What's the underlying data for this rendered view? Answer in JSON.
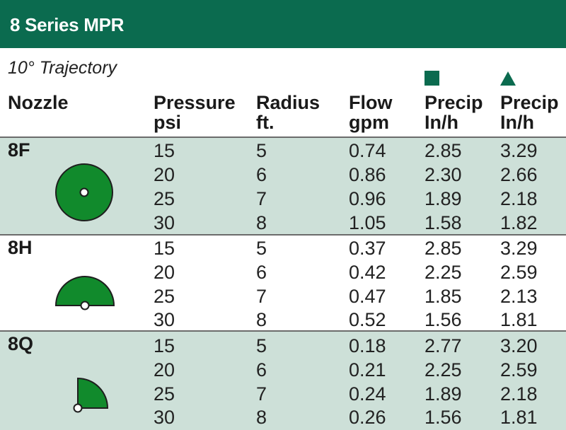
{
  "title": "8 Series MPR",
  "subtitle": "10° Trajectory",
  "colors": {
    "brand": "#0b6b4f",
    "band": "#cde0d8",
    "spray": "#118a2c"
  },
  "headers": {
    "nozzle": "Nozzle",
    "pressure": [
      "Pressure",
      "psi"
    ],
    "radius": [
      "Radius",
      "ft."
    ],
    "flow": [
      "Flow",
      "gpm"
    ],
    "precip_square": [
      "Precip",
      "In/h"
    ],
    "precip_triangle": [
      "Precip",
      "In/h"
    ]
  },
  "groups": [
    {
      "nozzle": "8F",
      "pattern_icon": "full-circle-icon",
      "rows": [
        {
          "pressure": "15",
          "radius": "5",
          "flow": "0.74",
          "precip_square": "2.85",
          "precip_triangle": "3.29"
        },
        {
          "pressure": "20",
          "radius": "6",
          "flow": "0.86",
          "precip_square": "2.30",
          "precip_triangle": "2.66"
        },
        {
          "pressure": "25",
          "radius": "7",
          "flow": "0.96",
          "precip_square": "1.89",
          "precip_triangle": "2.18"
        },
        {
          "pressure": "30",
          "radius": "8",
          "flow": "1.05",
          "precip_square": "1.58",
          "precip_triangle": "1.82"
        }
      ]
    },
    {
      "nozzle": "8H",
      "pattern_icon": "half-circle-icon",
      "rows": [
        {
          "pressure": "15",
          "radius": "5",
          "flow": "0.37",
          "precip_square": "2.85",
          "precip_triangle": "3.29"
        },
        {
          "pressure": "20",
          "radius": "6",
          "flow": "0.42",
          "precip_square": "2.25",
          "precip_triangle": "2.59"
        },
        {
          "pressure": "25",
          "radius": "7",
          "flow": "0.47",
          "precip_square": "1.85",
          "precip_triangle": "2.13"
        },
        {
          "pressure": "30",
          "radius": "8",
          "flow": "0.52",
          "precip_square": "1.56",
          "precip_triangle": "1.81"
        }
      ]
    },
    {
      "nozzle": "8Q",
      "pattern_icon": "quarter-circle-icon",
      "rows": [
        {
          "pressure": "15",
          "radius": "5",
          "flow": "0.18",
          "precip_square": "2.77",
          "precip_triangle": "3.20"
        },
        {
          "pressure": "20",
          "radius": "6",
          "flow": "0.21",
          "precip_square": "2.25",
          "precip_triangle": "2.59"
        },
        {
          "pressure": "25",
          "radius": "7",
          "flow": "0.24",
          "precip_square": "1.89",
          "precip_triangle": "2.18"
        },
        {
          "pressure": "30",
          "radius": "8",
          "flow": "0.26",
          "precip_square": "1.56",
          "precip_triangle": "1.81"
        }
      ]
    }
  ]
}
